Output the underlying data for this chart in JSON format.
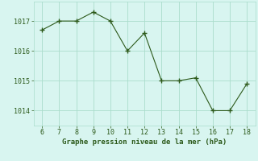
{
  "x": [
    6,
    7,
    8,
    9,
    10,
    11,
    12,
    13,
    14,
    15,
    16,
    17,
    18
  ],
  "y": [
    1016.7,
    1017.0,
    1017.0,
    1017.3,
    1017.0,
    1016.0,
    1016.6,
    1015.0,
    1015.0,
    1015.1,
    1014.0,
    1014.0,
    1014.9
  ],
  "line_color": "#2d5a1b",
  "marker_color": "#2d5a1b",
  "bg_color": "#d8f5f0",
  "grid_color": "#aaddcc",
  "xlabel": "Graphe pression niveau de la mer (hPa)",
  "xlabel_color": "#2d5a1b",
  "tick_color": "#2d5a1b",
  "ylim": [
    1013.5,
    1017.65
  ],
  "xlim": [
    5.5,
    18.5
  ],
  "yticks": [
    1014,
    1015,
    1016,
    1017
  ],
  "xticks": [
    6,
    7,
    8,
    9,
    10,
    11,
    12,
    13,
    14,
    15,
    16,
    17,
    18
  ],
  "figsize": [
    3.2,
    2.0
  ],
  "dpi": 100
}
